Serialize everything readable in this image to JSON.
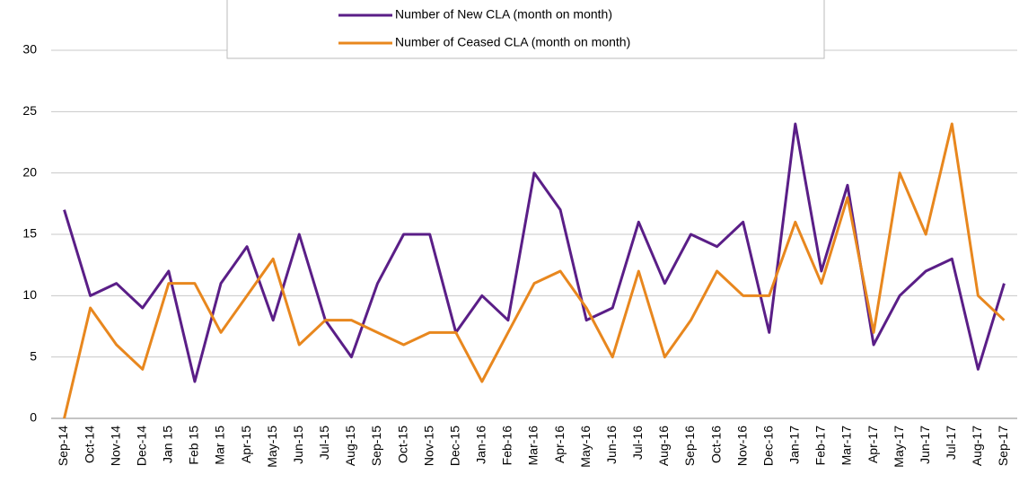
{
  "chart_data": {
    "type": "line",
    "categories": [
      "Sep-14",
      "Oct-14",
      "Nov-14",
      "Dec-14",
      "Jan 15",
      "Feb 15",
      "Mar 15",
      "Apr-15",
      "May-15",
      "Jun-15",
      "Jul-15",
      "Aug-15",
      "Sep-15",
      "Oct-15",
      "Nov-15",
      "Dec-15",
      "Jan-16",
      "Feb-16",
      "Mar-16",
      "Apr-16",
      "May-16",
      "Jun-16",
      "Jul-16",
      "Aug-16",
      "Sep-16",
      "Oct-16",
      "Nov-16",
      "Dec-16",
      "Jan-17",
      "Feb-17",
      "Mar-17",
      "Apr-17",
      "May-17",
      "Jun-17",
      "Jul-17",
      "Aug-17",
      "Sep-17"
    ],
    "series": [
      {
        "name": "Number of New CLA (month on month)",
        "color": "#5a1e87",
        "values": [
          17,
          10,
          11,
          9,
          12,
          3,
          11,
          14,
          8,
          15,
          8,
          5,
          11,
          15,
          15,
          7,
          10,
          8,
          20,
          17,
          8,
          9,
          16,
          11,
          15,
          14,
          16,
          7,
          24,
          12,
          19,
          6,
          10,
          12,
          13,
          4,
          11
        ]
      },
      {
        "name": "Number of Ceased CLA (month on month)",
        "color": "#e8871e",
        "values": [
          0,
          9,
          6,
          4,
          11,
          11,
          7,
          10,
          13,
          6,
          8,
          8,
          7,
          6,
          7,
          7,
          3,
          7,
          11,
          12,
          9,
          5,
          12,
          5,
          8,
          12,
          10,
          10,
          16,
          11,
          18,
          7,
          20,
          15,
          24,
          10,
          8
        ]
      }
    ],
    "ylim": [
      0,
      30
    ],
    "yticks": [
      0,
      5,
      10,
      15,
      20,
      25,
      30
    ],
    "grid": true,
    "legend": "top"
  }
}
